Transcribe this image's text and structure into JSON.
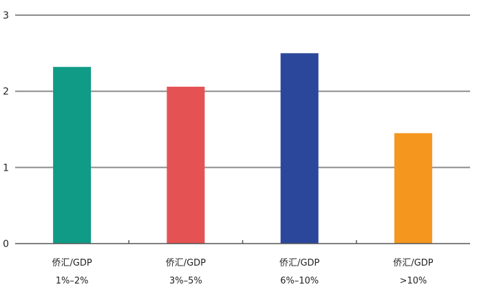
{
  "chart_data": {
    "type": "bar",
    "categories": [
      [
        "侨汇/GDP",
        "1%–2%"
      ],
      [
        "侨汇/GDP",
        "3%–5%"
      ],
      [
        "侨汇/GDP",
        "6%–10%"
      ],
      [
        "侨汇/GDP",
        ">10%"
      ]
    ],
    "values": [
      2.32,
      2.06,
      2.5,
      1.45
    ],
    "colors": [
      "#0f9b86",
      "#e55253",
      "#2b479c",
      "#f5961f"
    ],
    "ylim": [
      0,
      3
    ],
    "yticks": [
      "0",
      "1",
      "2",
      "3"
    ],
    "grid": true,
    "title": "",
    "xlabel": "",
    "ylabel": ""
  }
}
